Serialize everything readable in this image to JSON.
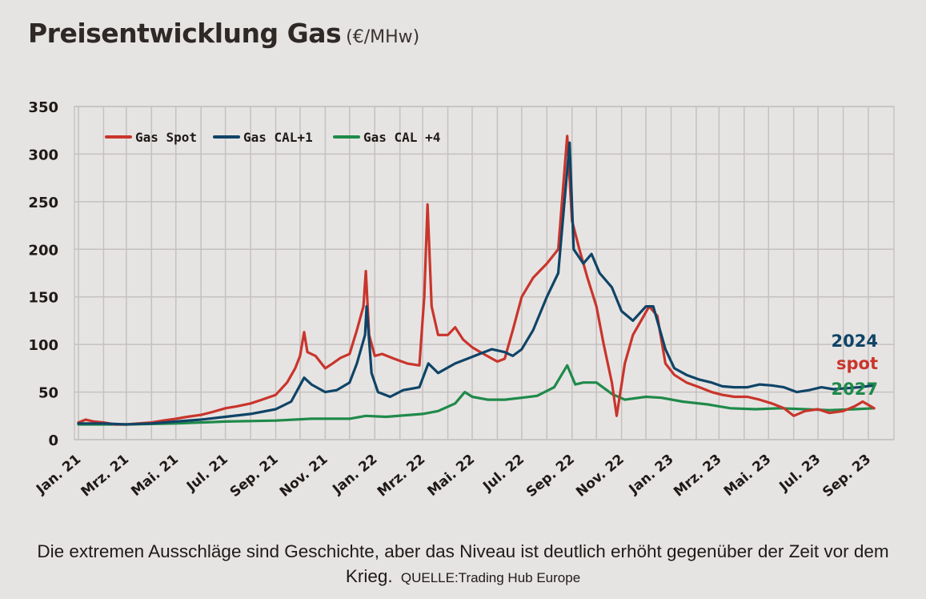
{
  "chart_data": {
    "type": "line",
    "title": "Preisentwicklung Gas",
    "unit": "(€/MHw)",
    "xlabel": "",
    "ylabel": "",
    "ylim": [
      0,
      350
    ],
    "yticks": [
      "0",
      "50",
      "100",
      "150",
      "200",
      "250",
      "300",
      "350"
    ],
    "x_tick_labels": [
      "Jan. 21",
      "Mrz. 21",
      "Mai. 21",
      "Jul. 21",
      "Sep. 21",
      "Nov. 21",
      "Jan. 22",
      "Mrz. 22",
      "Mai. 22",
      "Jul. 22",
      "Sep. 22",
      "Nov. 22",
      "Jan. 23",
      "Mrz. 23",
      "Mai. 23",
      "Jul. 23",
      "Sep. 23"
    ],
    "grid": true,
    "legend_position": "top-left",
    "series": [
      {
        "name": "Gas Spot",
        "color": "#c9352c",
        "points": [
          [
            "2021-01-01",
            18
          ],
          [
            "2021-01-10",
            21
          ],
          [
            "2021-01-20",
            19
          ],
          [
            "2021-02-01",
            18
          ],
          [
            "2021-02-15",
            16
          ],
          [
            "2021-03-01",
            16
          ],
          [
            "2021-03-15",
            17
          ],
          [
            "2021-04-01",
            18
          ],
          [
            "2021-04-15",
            20
          ],
          [
            "2021-05-01",
            22
          ],
          [
            "2021-05-15",
            24
          ],
          [
            "2021-06-01",
            26
          ],
          [
            "2021-06-15",
            29
          ],
          [
            "2021-07-01",
            33
          ],
          [
            "2021-07-15",
            35
          ],
          [
            "2021-08-01",
            38
          ],
          [
            "2021-08-15",
            42
          ],
          [
            "2021-09-01",
            47
          ],
          [
            "2021-09-15",
            60
          ],
          [
            "2021-09-25",
            75
          ],
          [
            "2021-10-01",
            88
          ],
          [
            "2021-10-06",
            113
          ],
          [
            "2021-10-10",
            92
          ],
          [
            "2021-10-20",
            88
          ],
          [
            "2021-11-01",
            75
          ],
          [
            "2021-11-10",
            80
          ],
          [
            "2021-11-20",
            86
          ],
          [
            "2021-12-01",
            90
          ],
          [
            "2021-12-10",
            115
          ],
          [
            "2021-12-18",
            140
          ],
          [
            "2021-12-21",
            177
          ],
          [
            "2021-12-25",
            110
          ],
          [
            "2022-01-01",
            88
          ],
          [
            "2022-01-10",
            90
          ],
          [
            "2022-01-25",
            85
          ],
          [
            "2022-02-10",
            80
          ],
          [
            "2022-02-25",
            78
          ],
          [
            "2022-03-03",
            150
          ],
          [
            "2022-03-07",
            247
          ],
          [
            "2022-03-12",
            140
          ],
          [
            "2022-03-20",
            110
          ],
          [
            "2022-04-01",
            110
          ],
          [
            "2022-04-10",
            118
          ],
          [
            "2022-04-20",
            105
          ],
          [
            "2022-05-01",
            97
          ],
          [
            "2022-05-15",
            90
          ],
          [
            "2022-06-01",
            82
          ],
          [
            "2022-06-10",
            85
          ],
          [
            "2022-06-20",
            115
          ],
          [
            "2022-07-01",
            150
          ],
          [
            "2022-07-15",
            170
          ],
          [
            "2022-08-01",
            185
          ],
          [
            "2022-08-15",
            200
          ],
          [
            "2022-08-26",
            319
          ],
          [
            "2022-09-01",
            230
          ],
          [
            "2022-09-10",
            200
          ],
          [
            "2022-09-20",
            170
          ],
          [
            "2022-10-01",
            140
          ],
          [
            "2022-10-10",
            100
          ],
          [
            "2022-10-20",
            60
          ],
          [
            "2022-10-26",
            25
          ],
          [
            "2022-11-05",
            80
          ],
          [
            "2022-11-15",
            110
          ],
          [
            "2022-11-25",
            125
          ],
          [
            "2022-12-05",
            140
          ],
          [
            "2022-12-15",
            130
          ],
          [
            "2022-12-25",
            80
          ],
          [
            "2023-01-05",
            68
          ],
          [
            "2023-01-20",
            60
          ],
          [
            "2023-02-05",
            55
          ],
          [
            "2023-02-20",
            50
          ],
          [
            "2023-03-05",
            47
          ],
          [
            "2023-03-20",
            45
          ],
          [
            "2023-04-05",
            45
          ],
          [
            "2023-04-20",
            42
          ],
          [
            "2023-05-05",
            38
          ],
          [
            "2023-05-20",
            33
          ],
          [
            "2023-06-01",
            25
          ],
          [
            "2023-06-15",
            30
          ],
          [
            "2023-07-01",
            32
          ],
          [
            "2023-07-15",
            28
          ],
          [
            "2023-08-01",
            30
          ],
          [
            "2023-08-15",
            35
          ],
          [
            "2023-08-25",
            40
          ],
          [
            "2023-09-08",
            33
          ]
        ]
      },
      {
        "name": "Gas CAL+1",
        "color": "#0f4466",
        "points": [
          [
            "2021-01-01",
            17
          ],
          [
            "2021-02-01",
            17
          ],
          [
            "2021-03-01",
            16
          ],
          [
            "2021-04-01",
            17
          ],
          [
            "2021-05-01",
            19
          ],
          [
            "2021-06-01",
            21
          ],
          [
            "2021-07-01",
            24
          ],
          [
            "2021-08-01",
            27
          ],
          [
            "2021-09-01",
            32
          ],
          [
            "2021-09-20",
            40
          ],
          [
            "2021-10-06",
            65
          ],
          [
            "2021-10-15",
            58
          ],
          [
            "2021-11-01",
            50
          ],
          [
            "2021-11-15",
            52
          ],
          [
            "2021-12-01",
            60
          ],
          [
            "2021-12-10",
            80
          ],
          [
            "2021-12-20",
            110
          ],
          [
            "2021-12-22",
            140
          ],
          [
            "2021-12-28",
            70
          ],
          [
            "2022-01-05",
            50
          ],
          [
            "2022-01-20",
            45
          ],
          [
            "2022-02-05",
            52
          ],
          [
            "2022-02-25",
            55
          ],
          [
            "2022-03-08",
            80
          ],
          [
            "2022-03-20",
            70
          ],
          [
            "2022-04-10",
            80
          ],
          [
            "2022-04-25",
            85
          ],
          [
            "2022-05-10",
            90
          ],
          [
            "2022-05-25",
            95
          ],
          [
            "2022-06-10",
            92
          ],
          [
            "2022-06-20",
            88
          ],
          [
            "2022-07-01",
            95
          ],
          [
            "2022-07-15",
            115
          ],
          [
            "2022-08-01",
            150
          ],
          [
            "2022-08-15",
            175
          ],
          [
            "2022-08-29",
            312
          ],
          [
            "2022-09-03",
            200
          ],
          [
            "2022-09-15",
            185
          ],
          [
            "2022-09-25",
            195
          ],
          [
            "2022-10-05",
            175
          ],
          [
            "2022-10-20",
            160
          ],
          [
            "2022-11-01",
            135
          ],
          [
            "2022-11-15",
            125
          ],
          [
            "2022-12-01",
            140
          ],
          [
            "2022-12-10",
            140
          ],
          [
            "2022-12-25",
            95
          ],
          [
            "2023-01-05",
            75
          ],
          [
            "2023-01-20",
            68
          ],
          [
            "2023-02-05",
            63
          ],
          [
            "2023-02-20",
            60
          ],
          [
            "2023-03-05",
            56
          ],
          [
            "2023-03-20",
            55
          ],
          [
            "2023-04-05",
            55
          ],
          [
            "2023-04-20",
            58
          ],
          [
            "2023-05-05",
            57
          ],
          [
            "2023-05-20",
            55
          ],
          [
            "2023-06-05",
            50
          ],
          [
            "2023-06-20",
            52
          ],
          [
            "2023-07-05",
            55
          ],
          [
            "2023-07-20",
            53
          ],
          [
            "2023-08-05",
            54
          ],
          [
            "2023-08-20",
            55
          ],
          [
            "2023-09-08",
            57
          ]
        ]
      },
      {
        "name": "Gas CAL +4",
        "color": "#1f8a4a",
        "points": [
          [
            "2021-01-01",
            16
          ],
          [
            "2021-03-01",
            16
          ],
          [
            "2021-05-01",
            17
          ],
          [
            "2021-07-01",
            19
          ],
          [
            "2021-09-01",
            20
          ],
          [
            "2021-10-15",
            22
          ],
          [
            "2021-12-01",
            22
          ],
          [
            "2021-12-21",
            25
          ],
          [
            "2022-01-15",
            24
          ],
          [
            "2022-03-01",
            27
          ],
          [
            "2022-03-20",
            30
          ],
          [
            "2022-04-10",
            38
          ],
          [
            "2022-04-22",
            50
          ],
          [
            "2022-05-01",
            45
          ],
          [
            "2022-05-20",
            42
          ],
          [
            "2022-06-10",
            42
          ],
          [
            "2022-07-01",
            44
          ],
          [
            "2022-07-20",
            46
          ],
          [
            "2022-08-10",
            55
          ],
          [
            "2022-08-26",
            78
          ],
          [
            "2022-09-05",
            58
          ],
          [
            "2022-09-15",
            60
          ],
          [
            "2022-10-01",
            60
          ],
          [
            "2022-10-20",
            48
          ],
          [
            "2022-11-05",
            42
          ],
          [
            "2022-12-01",
            45
          ],
          [
            "2022-12-20",
            44
          ],
          [
            "2023-01-15",
            40
          ],
          [
            "2023-02-15",
            37
          ],
          [
            "2023-03-15",
            33
          ],
          [
            "2023-04-15",
            32
          ],
          [
            "2023-05-15",
            33
          ],
          [
            "2023-06-15",
            32
          ],
          [
            "2023-07-15",
            31
          ],
          [
            "2023-08-15",
            32
          ],
          [
            "2023-09-08",
            33
          ]
        ]
      }
    ],
    "end_labels": [
      "2024",
      "spot",
      "2027"
    ]
  },
  "caption": {
    "text": "Die extremen Ausschläge sind Geschichte, aber das Niveau ist deutlich erhöht gegenüber der Zeit vor dem Krieg.",
    "source": "QUELLE:Trading Hub Europe"
  }
}
